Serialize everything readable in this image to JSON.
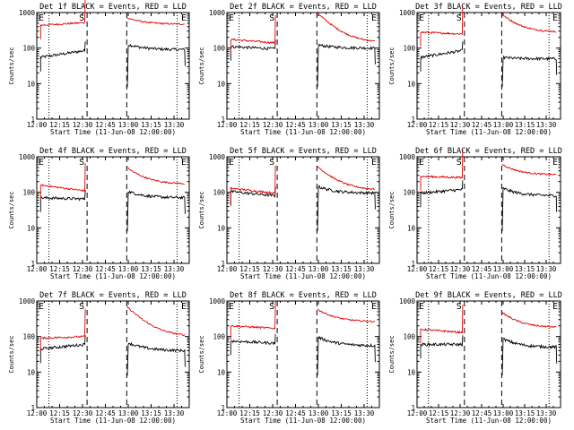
{
  "colors": {
    "events": "#000000",
    "lld": "#e00000",
    "background": "#ffffff",
    "axes": "#000000"
  },
  "shared": {
    "ylabel": "Counts/sec",
    "xlabel": "Start Time (11-Jun-08 12:00:00)",
    "x_ticks": [
      "12:00",
      "12:15",
      "12:30",
      "12:45",
      "13:00",
      "13:15",
      "13:30"
    ],
    "y_ticks": [
      "1",
      "10",
      "100",
      "1000"
    ],
    "x_range_minutes": [
      0,
      100
    ],
    "y_range_log": [
      1,
      1000
    ],
    "marker_left": "E",
    "marker_mid": "S",
    "marker_right": "E",
    "dotted_lines_minutes": [
      8,
      92
    ],
    "dashed_lines_minutes": [
      33,
      59
    ]
  },
  "chart_data": [
    {
      "type": "line",
      "title": "Det 1f BLACK = Events, RED = LLD",
      "series": [
        {
          "name": "Events",
          "color": "#000000",
          "pre": [
            55,
            85
          ],
          "post": [
            130,
            90
          ]
        },
        {
          "name": "LLD",
          "color": "#e00000",
          "pre": [
            440,
            520
          ],
          "post": [
            720,
            470
          ]
        }
      ]
    },
    {
      "type": "line",
      "title": "Det 2f BLACK = Events, RED = LLD",
      "series": [
        {
          "name": "Events",
          "color": "#000000",
          "pre": [
            110,
            95
          ],
          "post": [
            125,
            100
          ]
        },
        {
          "name": "LLD",
          "color": "#e00000",
          "pre": [
            175,
            140
          ],
          "post": [
            1000,
            140
          ]
        }
      ]
    },
    {
      "type": "line",
      "title": "Det 3f BLACK = Events, RED = LLD",
      "series": [
        {
          "name": "Events",
          "color": "#000000",
          "pre": [
            55,
            85
          ],
          "post": [
            55,
            50
          ]
        },
        {
          "name": "LLD",
          "color": "#e00000",
          "pre": [
            280,
            250
          ],
          "post": [
            900,
            280
          ]
        }
      ]
    },
    {
      "type": "line",
      "title": "Det 4f BLACK = Events, RED = LLD",
      "series": [
        {
          "name": "Events",
          "color": "#000000",
          "pre": [
            70,
            65
          ],
          "post": [
            110,
            70
          ]
        },
        {
          "name": "LLD",
          "color": "#e00000",
          "pre": [
            160,
            110
          ],
          "post": [
            500,
            170
          ]
        }
      ]
    },
    {
      "type": "line",
      "title": "Det 5f BLACK = Events, RED = LLD",
      "series": [
        {
          "name": "Events",
          "color": "#000000",
          "pre": [
            105,
            80
          ],
          "post": [
            150,
            95
          ]
        },
        {
          "name": "LLD",
          "color": "#e00000",
          "pre": [
            130,
            95
          ],
          "post": [
            550,
            115
          ]
        }
      ]
    },
    {
      "type": "line",
      "title": "Det 6f BLACK = Events, RED = LLD",
      "series": [
        {
          "name": "Events",
          "color": "#000000",
          "pre": [
            95,
            120
          ],
          "post": [
            135,
            80
          ]
        },
        {
          "name": "LLD",
          "color": "#e00000",
          "pre": [
            280,
            260
          ],
          "post": [
            620,
            310
          ]
        }
      ]
    },
    {
      "type": "line",
      "title": "Det 7f BLACK = Events, RED = LLD",
      "series": [
        {
          "name": "Events",
          "color": "#000000",
          "pre": [
            45,
            60
          ],
          "post": [
            70,
            40
          ]
        },
        {
          "name": "LLD",
          "color": "#e00000",
          "pre": [
            90,
            100
          ],
          "post": [
            700,
            100
          ]
        }
      ]
    },
    {
      "type": "line",
      "title": "Det 8f BLACK = Events, RED = LLD",
      "series": [
        {
          "name": "Events",
          "color": "#000000",
          "pre": [
            75,
            65
          ],
          "post": [
            100,
            55
          ]
        },
        {
          "name": "LLD",
          "color": "#e00000",
          "pre": [
            200,
            170
          ],
          "post": [
            600,
            260
          ]
        }
      ]
    },
    {
      "type": "line",
      "title": "Det 9f BLACK = Events, RED = LLD",
      "series": [
        {
          "name": "Events",
          "color": "#000000",
          "pre": [
            60,
            60
          ],
          "post": [
            90,
            50
          ]
        },
        {
          "name": "LLD",
          "color": "#e00000",
          "pre": [
            160,
            130
          ],
          "post": [
            480,
            180
          ]
        }
      ]
    }
  ]
}
